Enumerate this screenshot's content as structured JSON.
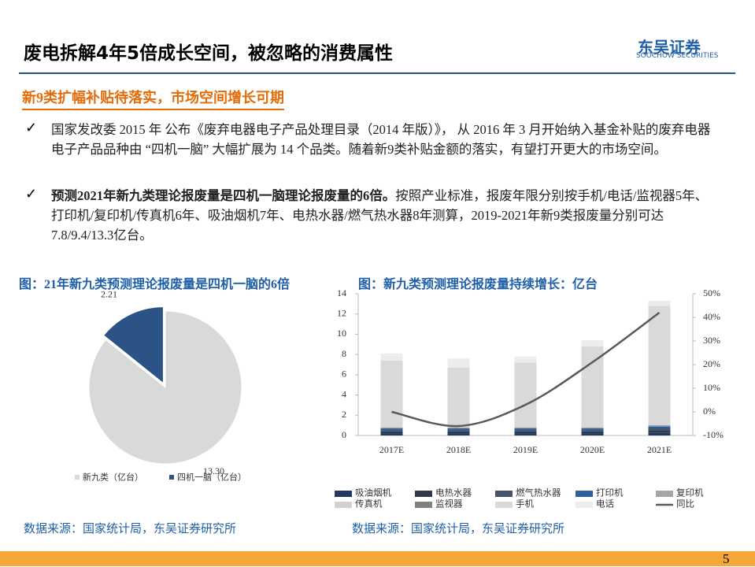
{
  "header": {
    "title": "废电拆解4年5倍成长空间，被忽略的消费属性",
    "logo": "东吴证券",
    "logo_sub": "SOOCHOW SECURITIES"
  },
  "subtitle": "新9类扩幅补贴待落实，市场空间增长可期",
  "bullets": [
    {
      "text": "国家发改委 2015 年 公布《废弃电器电子产品处理目录（2014 年版）》， 从 2016 年 3 月开始纳入基金补贴的废弃电器电子产品品种由 “四机一脑” 大幅扩展为 14 个品类。随着新9类补贴金额的落实，有望打开更大的市场空间。"
    },
    {
      "bold": "预测2021年新九类理论报废量是四机一脑理论报废量的6倍。",
      "text": "按照产业标准，报废年限分别按手机/电话/监视器5年、打印机/复印机/传真机6年、吸油烟机7年、电热水器/燃气热水器8年测算，2019-2021年新9类报废量分别可达7.8/9.4/13.3亿台。"
    }
  ],
  "chart_data": [
    {
      "type": "pie",
      "title": "图：21年新九类预测理论报废量是四机一脑的6倍",
      "categories": [
        "新九类（亿台）",
        "四机一脑（亿台）"
      ],
      "values": [
        13.3,
        2.21
      ],
      "value_labels": [
        "13.30",
        "2.21"
      ],
      "colors": [
        "#d9d9d9",
        "#2b5386"
      ],
      "source": "数据来源：国家统计局，东吴证券研究所"
    },
    {
      "type": "bar",
      "stacked": true,
      "title": "图：新九类预测理论报废量持续增长：亿台",
      "categories": [
        "2017E",
        "2018E",
        "2019E",
        "2020E",
        "2021E"
      ],
      "series": [
        {
          "name": "吸油烟机",
          "color": "#1f3864",
          "values": [
            0.2,
            0.2,
            0.2,
            0.2,
            0.25
          ]
        },
        {
          "name": "电热水器",
          "color": "#2f3b4c",
          "values": [
            0.2,
            0.2,
            0.2,
            0.2,
            0.25
          ]
        },
        {
          "name": "燃气热水器",
          "color": "#44546a",
          "values": [
            0.15,
            0.15,
            0.15,
            0.15,
            0.2
          ]
        },
        {
          "name": "打印机",
          "color": "#2e5f9e",
          "values": [
            0.15,
            0.15,
            0.15,
            0.15,
            0.2
          ]
        },
        {
          "name": "复印机",
          "color": "#a6a6a6",
          "values": [
            0.02,
            0.02,
            0.02,
            0.02,
            0.02
          ]
        },
        {
          "name": "传真机",
          "color": "#d0d0d0",
          "values": [
            0.02,
            0.02,
            0.02,
            0.02,
            0.02
          ]
        },
        {
          "name": "监视器",
          "color": "#7f7f7f",
          "values": [
            0.06,
            0.06,
            0.06,
            0.06,
            0.06
          ]
        },
        {
          "name": "手机",
          "color": "#d9d9d9",
          "values": [
            6.6,
            5.9,
            6.4,
            8.0,
            11.8
          ]
        },
        {
          "name": "电话",
          "color": "#ececec",
          "values": [
            0.7,
            0.9,
            0.6,
            0.6,
            0.5
          ]
        },
        {
          "name": "同比",
          "color": "#595959",
          "type": "line",
          "axis": "y2",
          "values": [
            0,
            -6,
            3,
            21,
            42
          ]
        }
      ],
      "ylim": [
        0,
        14
      ],
      "yticks": [
        0,
        2,
        4,
        6,
        8,
        10,
        12,
        14
      ],
      "y2lim": [
        -10,
        50
      ],
      "y2ticks": [
        {
          "value": -10,
          "label": "-10%"
        },
        {
          "value": 0,
          "label": "0%"
        },
        {
          "value": 10,
          "label": "10%"
        },
        {
          "value": 20,
          "label": "20%"
        },
        {
          "value": 30,
          "label": "30%"
        },
        {
          "value": 40,
          "label": "40%"
        },
        {
          "value": 50,
          "label": "50%"
        }
      ],
      "source": "数据来源：国家统计局，东吴证券研究所"
    }
  ],
  "page_number": "5"
}
